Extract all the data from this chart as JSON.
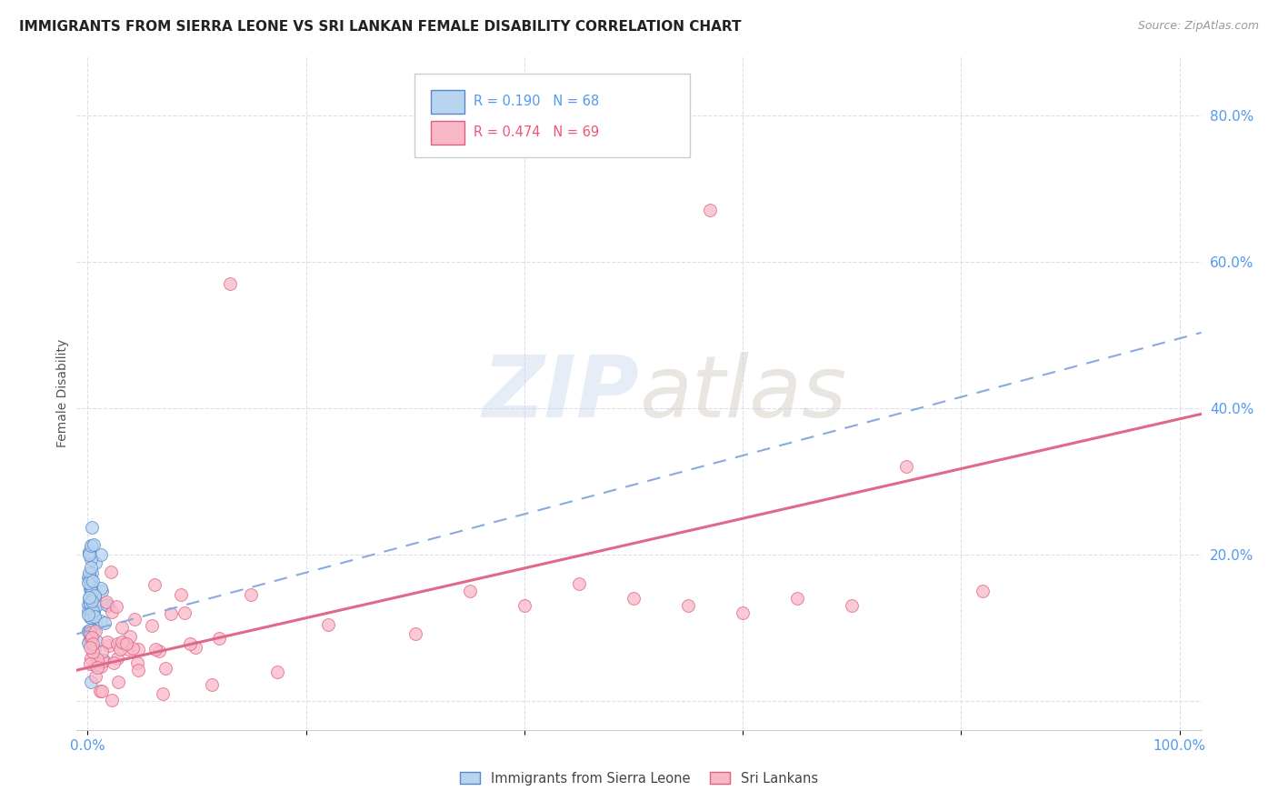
{
  "title": "IMMIGRANTS FROM SIERRA LEONE VS SRI LANKAN FEMALE DISABILITY CORRELATION CHART",
  "source": "Source: ZipAtlas.com",
  "ylabel": "Female Disability",
  "watermark_zip": "ZIP",
  "watermark_atlas": "atlas",
  "sierra_leone_R": 0.19,
  "sierra_leone_N": 68,
  "sri_lanka_R": 0.474,
  "sri_lanka_N": 69,
  "sierra_leone_face_color": "#b8d4ee",
  "sierra_leone_edge_color": "#5588cc",
  "sri_lanka_face_color": "#f8b8c8",
  "sri_lanka_edge_color": "#e06080",
  "sl_line_color": "#88aadd",
  "sri_line_color": "#e06888",
  "bg_color": "#ffffff",
  "grid_color": "#ddddee",
  "title_color": "#222222",
  "source_color": "#999999",
  "tick_color": "#5599ee",
  "ylabel_color": "#555555",
  "legend_edge_color": "#cccccc",
  "note_color": "#444444",
  "sl_line_x0": 0.0,
  "sl_line_y0": 0.095,
  "sl_line_x1": 1.0,
  "sl_line_y1": 0.495,
  "sri_line_x0": 0.0,
  "sri_line_y0": 0.045,
  "sri_line_x1": 1.0,
  "sri_line_y1": 0.385,
  "ylim_min": -0.04,
  "ylim_max": 0.88,
  "xlim_min": -0.01,
  "xlim_max": 1.02
}
